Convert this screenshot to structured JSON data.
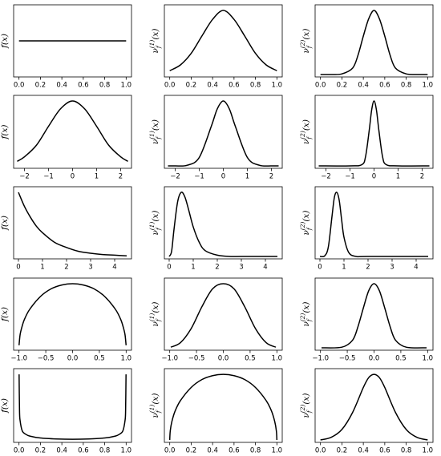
{
  "chart_data": [
    {
      "type": "line",
      "ylabel": "f(x)",
      "x_ticks": [
        "0.0",
        "0.2",
        "0.4",
        "0.6",
        "0.8",
        "1.0"
      ],
      "xlim": [
        -0.05,
        1.05
      ],
      "ylim": [
        0,
        2
      ],
      "series": [
        {
          "x": [
            0,
            0.25,
            0.5,
            0.75,
            1
          ],
          "y": [
            1,
            1,
            1,
            1,
            1
          ]
        }
      ]
    },
    {
      "type": "line",
      "ylabel": "ν_f^(1)(x)",
      "x_ticks": [
        "0.0",
        "0.2",
        "0.4",
        "0.6",
        "0.8",
        "1.0"
      ],
      "xlim": [
        -0.05,
        1.05
      ],
      "ylim": [
        0,
        1.05
      ],
      "series": [
        {
          "x": [
            0,
            0.1,
            0.2,
            0.3,
            0.4,
            0.5,
            0.6,
            0.7,
            0.8,
            0.9,
            1
          ],
          "y": [
            0.06,
            0.15,
            0.33,
            0.6,
            0.86,
            1,
            0.86,
            0.6,
            0.33,
            0.15,
            0.06
          ]
        }
      ]
    },
    {
      "type": "line",
      "ylabel": "ν_f^(2)(x)",
      "x_ticks": [
        "0.0",
        "0.2",
        "0.4",
        "0.6",
        "0.8",
        "1.0"
      ],
      "xlim": [
        -0.05,
        1.05
      ],
      "ylim": [
        0,
        1.05
      ],
      "series": [
        {
          "x": [
            0,
            0.1,
            0.2,
            0.3,
            0.35,
            0.4,
            0.45,
            0.5,
            0.55,
            0.6,
            0.65,
            0.7,
            0.8,
            0.9,
            1
          ],
          "y": [
            0,
            0,
            0.01,
            0.1,
            0.3,
            0.6,
            0.87,
            1,
            0.87,
            0.6,
            0.3,
            0.1,
            0.01,
            0,
            0
          ]
        }
      ]
    },
    {
      "type": "line",
      "ylabel": "f(x)",
      "x_ticks": [
        "−2",
        "−1",
        "0",
        "1",
        "2"
      ],
      "xlim": [
        -2.45,
        2.45
      ],
      "ylim": [
        0,
        1.05
      ],
      "series": [
        {
          "x": [
            -2.3,
            -2,
            -1.5,
            -1,
            -0.5,
            0,
            0.5,
            1,
            1.5,
            2,
            2.3
          ],
          "y": [
            0.07,
            0.14,
            0.32,
            0.61,
            0.88,
            1,
            0.88,
            0.61,
            0.32,
            0.14,
            0.07
          ]
        }
      ]
    },
    {
      "type": "line",
      "ylabel": "ν_f^(1)(x)",
      "x_ticks": [
        "−2",
        "−1",
        "0",
        "1",
        "2"
      ],
      "xlim": [
        -2.45,
        2.45
      ],
      "ylim": [
        0,
        1.05
      ],
      "series": [
        {
          "x": [
            -2.3,
            -2,
            -1.5,
            -1,
            -0.5,
            -0.25,
            0,
            0.25,
            0.5,
            1,
            1.5,
            2,
            2.3
          ],
          "y": [
            0,
            0,
            0.01,
            0.13,
            0.61,
            0.88,
            1,
            0.88,
            0.61,
            0.13,
            0.01,
            0,
            0
          ]
        }
      ]
    },
    {
      "type": "line",
      "ylabel": "ν_f^(2)(x)",
      "x_ticks": [
        "−2",
        "−1",
        "0",
        "1",
        "2"
      ],
      "xlim": [
        -2.45,
        2.45
      ],
      "ylim": [
        0,
        1.05
      ],
      "series": [
        {
          "x": [
            -2.3,
            -1,
            -0.5,
            -0.35,
            -0.2,
            -0.1,
            0,
            0.1,
            0.2,
            0.35,
            0.5,
            1,
            2.3
          ],
          "y": [
            0,
            0,
            0.02,
            0.15,
            0.55,
            0.86,
            1,
            0.86,
            0.55,
            0.15,
            0.02,
            0,
            0
          ]
        }
      ]
    },
    {
      "type": "line",
      "ylabel": "f(x)",
      "x_ticks": [
        "0",
        "1",
        "2",
        "3",
        "4"
      ],
      "xlim": [
        -0.2,
        4.7
      ],
      "ylim": [
        0,
        1.05
      ],
      "series": [
        {
          "x": [
            0,
            0.25,
            0.5,
            0.75,
            1,
            1.5,
            2,
            2.5,
            3,
            3.5,
            4,
            4.5
          ],
          "y": [
            1,
            0.78,
            0.61,
            0.47,
            0.37,
            0.22,
            0.14,
            0.08,
            0.05,
            0.03,
            0.02,
            0.01
          ]
        }
      ]
    },
    {
      "type": "line",
      "ylabel": "ν_f^(1)(x)",
      "x_ticks": [
        "0",
        "1",
        "2",
        "3",
        "4"
      ],
      "xlim": [
        -0.2,
        4.7
      ],
      "ylim": [
        0,
        1.05
      ],
      "series": [
        {
          "x": [
            0,
            0.1,
            0.2,
            0.35,
            0.5,
            0.65,
            0.8,
            1,
            1.25,
            1.5,
            2,
            2.5,
            3,
            4,
            4.5
          ],
          "y": [
            0,
            0.08,
            0.42,
            0.85,
            1,
            0.93,
            0.74,
            0.46,
            0.22,
            0.09,
            0.02,
            0,
            0,
            0,
            0
          ]
        }
      ]
    },
    {
      "type": "line",
      "ylabel": "ν_f^(2)(x)",
      "x_ticks": [
        "0",
        "1",
        "2",
        "3",
        "4"
      ],
      "xlim": [
        -0.2,
        4.7
      ],
      "ylim": [
        0,
        1.05
      ],
      "series": [
        {
          "x": [
            0,
            0.2,
            0.35,
            0.5,
            0.6,
            0.7,
            0.8,
            0.9,
            1,
            1.2,
            1.5,
            2,
            4.5
          ],
          "y": [
            0,
            0.01,
            0.15,
            0.62,
            0.92,
            1,
            0.88,
            0.58,
            0.3,
            0.06,
            0,
            0,
            0
          ]
        }
      ]
    },
    {
      "type": "line",
      "ylabel": "f(x)",
      "x_ticks": [
        "−1.0",
        "−0.5",
        "0.0",
        "0.5",
        "1.0"
      ],
      "xlim": [
        -1.1,
        1.1
      ],
      "ylim": [
        0,
        1.05
      ],
      "series": [
        {
          "x": [
            -0.999,
            -0.98,
            -0.95,
            -0.9,
            -0.8,
            -0.6,
            -0.4,
            -0.2,
            0,
            0.2,
            0.4,
            0.6,
            0.8,
            0.9,
            0.95,
            0.98,
            0.999
          ],
          "y": [
            0.04,
            0.2,
            0.31,
            0.44,
            0.6,
            0.8,
            0.92,
            0.98,
            1,
            0.98,
            0.92,
            0.8,
            0.6,
            0.44,
            0.31,
            0.2,
            0.04
          ]
        }
      ]
    },
    {
      "type": "line",
      "ylabel": "ν_f^(1)(x)",
      "x_ticks": [
        "−1.0",
        "−0.5",
        "0.0",
        "0.5",
        "1.0"
      ],
      "xlim": [
        -1.1,
        1.1
      ],
      "ylim": [
        0,
        1.05
      ],
      "series": [
        {
          "x": [
            -0.98,
            -0.8,
            -0.6,
            -0.4,
            -0.2,
            0,
            0.2,
            0.4,
            0.6,
            0.8,
            0.98
          ],
          "y": [
            0.01,
            0.08,
            0.3,
            0.64,
            0.92,
            1,
            0.92,
            0.64,
            0.3,
            0.08,
            0.01
          ]
        }
      ]
    },
    {
      "type": "line",
      "ylabel": "ν_f^(2)(x)",
      "x_ticks": [
        "−1.0",
        "−0.5",
        "0.0",
        "0.5",
        "1.0"
      ],
      "xlim": [
        -1.1,
        1.1
      ],
      "ylim": [
        0,
        1.05
      ],
      "series": [
        {
          "x": [
            -0.98,
            -0.6,
            -0.4,
            -0.3,
            -0.2,
            -0.1,
            0,
            0.1,
            0.2,
            0.3,
            0.4,
            0.6,
            0.98
          ],
          "y": [
            0,
            0.01,
            0.12,
            0.33,
            0.62,
            0.89,
            1,
            0.89,
            0.62,
            0.33,
            0.12,
            0.01,
            0
          ]
        }
      ]
    },
    {
      "type": "line",
      "ylabel": "f(x)",
      "x_ticks": [
        "0.0",
        "0.2",
        "0.4",
        "0.6",
        "0.8",
        "1.0"
      ],
      "xlim": [
        -0.05,
        1.05
      ],
      "ylim": [
        0,
        1.05
      ],
      "series": [
        {
          "x": [
            0.001,
            0.005,
            0.01,
            0.03,
            0.06,
            0.1,
            0.2,
            0.35,
            0.5,
            0.65,
            0.8,
            0.9,
            0.94,
            0.97,
            0.99,
            0.995,
            0.999
          ],
          "y": [
            1,
            0.45,
            0.3,
            0.14,
            0.09,
            0.06,
            0.03,
            0.015,
            0.01,
            0.015,
            0.03,
            0.06,
            0.09,
            0.14,
            0.3,
            0.45,
            1
          ]
        }
      ]
    },
    {
      "type": "line",
      "ylabel": "ν_f^(1)(x)",
      "x_ticks": [
        "0.0",
        "0.2",
        "0.4",
        "0.6",
        "0.8",
        "1.0"
      ],
      "xlim": [
        -0.05,
        1.05
      ],
      "ylim": [
        0,
        1.05
      ],
      "series": [
        {
          "x": [
            0,
            0.005,
            0.02,
            0.05,
            0.1,
            0.2,
            0.3,
            0.4,
            0.5,
            0.6,
            0.7,
            0.8,
            0.9,
            0.95,
            0.98,
            0.995,
            1
          ],
          "y": [
            0,
            0.14,
            0.28,
            0.44,
            0.6,
            0.8,
            0.92,
            0.98,
            1,
            0.98,
            0.92,
            0.8,
            0.6,
            0.44,
            0.28,
            0.14,
            0
          ]
        }
      ]
    },
    {
      "type": "line",
      "ylabel": "ν_f^(2)(x)",
      "x_ticks": [
        "0.0",
        "0.2",
        "0.4",
        "0.6",
        "0.8",
        "1.0"
      ],
      "xlim": [
        -0.05,
        1.05
      ],
      "ylim": [
        0,
        1.05
      ],
      "series": [
        {
          "x": [
            0,
            0.1,
            0.2,
            0.3,
            0.4,
            0.45,
            0.5,
            0.55,
            0.6,
            0.7,
            0.8,
            0.9,
            1
          ],
          "y": [
            0,
            0.04,
            0.16,
            0.42,
            0.8,
            0.95,
            1,
            0.95,
            0.8,
            0.42,
            0.16,
            0.04,
            0
          ]
        }
      ]
    }
  ]
}
